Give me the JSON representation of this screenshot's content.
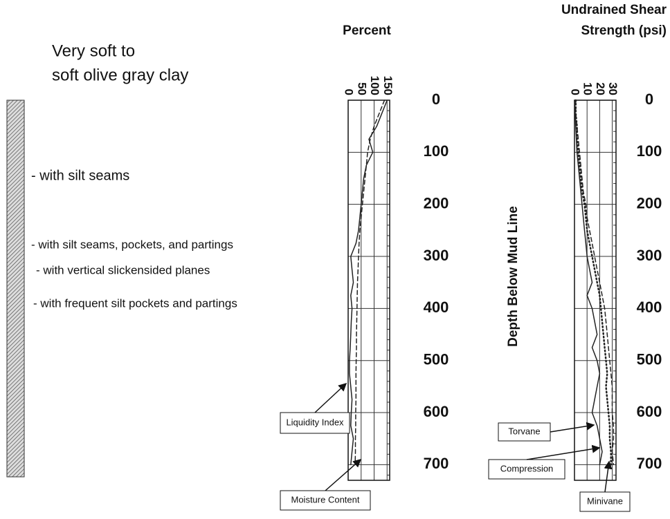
{
  "description": {
    "title": [
      "Very soft to",
      "soft olive gray clay"
    ],
    "notes": [
      "- with silt seams",
      "- with silt seams, pockets, and partings",
      "- with  vertical slickensided planes",
      "- with frequent silt pockets and partings"
    ]
  },
  "chart_data": [
    {
      "type": "line",
      "title": [
        "Percent"
      ],
      "xlim": [
        0,
        160
      ],
      "xticks": [
        0,
        50,
        100,
        150
      ],
      "ylim": [
        0,
        730
      ],
      "yticks": [
        0,
        100,
        200,
        300,
        400,
        500,
        600,
        700
      ],
      "y_inverted": true,
      "grid": true,
      "depths": [
        0,
        25,
        50,
        75,
        100,
        125,
        150,
        175,
        200,
        225,
        250,
        275,
        300,
        325,
        350,
        375,
        400,
        425,
        450,
        475,
        500,
        525,
        550,
        575,
        600,
        625,
        650,
        675,
        700
      ],
      "series": [
        {
          "name": "Liquidity Index",
          "color": "#222",
          "line_style": "solid",
          "values": [
            150,
            130,
            110,
            80,
            95,
            70,
            60,
            55,
            50,
            45,
            40,
            30,
            10,
            15,
            20,
            10,
            15,
            12,
            10,
            8,
            5,
            5,
            10,
            15,
            12,
            10,
            20,
            15,
            10
          ]
        },
        {
          "name": "Moisture Content",
          "color": "#222",
          "line_style": "dashed",
          "values": [
            140,
            120,
            100,
            85,
            75,
            70,
            65,
            60,
            55,
            50,
            45,
            42,
            40,
            38,
            36,
            35,
            34,
            33,
            32,
            32,
            31,
            30,
            30,
            30,
            29,
            29,
            28,
            28,
            27
          ]
        }
      ]
    },
    {
      "type": "line",
      "title": [
        "Undrained Shear",
        "Strength (psi)"
      ],
      "ylabel": "Depth Below Mud Line",
      "xlim": [
        0,
        33
      ],
      "xticks": [
        0,
        10,
        20,
        30
      ],
      "ylim": [
        0,
        730
      ],
      "yticks": [
        0,
        100,
        200,
        300,
        400,
        500,
        600,
        700
      ],
      "y_inverted": true,
      "grid": true,
      "depths": [
        0,
        25,
        50,
        75,
        100,
        125,
        150,
        175,
        200,
        225,
        250,
        275,
        300,
        325,
        350,
        375,
        400,
        425,
        450,
        475,
        500,
        525,
        550,
        575,
        600,
        625,
        650,
        675,
        700
      ],
      "series": [
        {
          "name": "Torvane",
          "color": "#222",
          "line_style": "solid",
          "values": [
            0,
            0.5,
            1,
            1.5,
            2,
            3,
            4,
            5,
            6,
            7,
            8,
            9,
            10,
            12,
            14,
            10,
            14,
            16,
            18,
            14,
            18,
            20,
            18,
            16,
            14,
            18,
            20,
            22,
            20
          ]
        },
        {
          "name": "Compression",
          "color": "#222",
          "line_style": "dotted",
          "values": [
            1,
            1,
            2,
            2,
            3,
            4,
            5,
            6,
            8,
            9,
            10,
            12,
            14,
            16,
            18,
            20,
            21,
            22,
            23,
            24,
            25,
            26,
            25,
            26,
            27,
            28,
            28,
            29,
            29
          ]
        },
        {
          "name": "Minivane",
          "color": "#222",
          "line_style": "dashed",
          "values": [
            1,
            1,
            2,
            3,
            4,
            5,
            6,
            7,
            9,
            10,
            12,
            14,
            16,
            18,
            20,
            22,
            24,
            25,
            26,
            27,
            28,
            29,
            30,
            30,
            30,
            31,
            31,
            30,
            31
          ]
        }
      ]
    }
  ]
}
